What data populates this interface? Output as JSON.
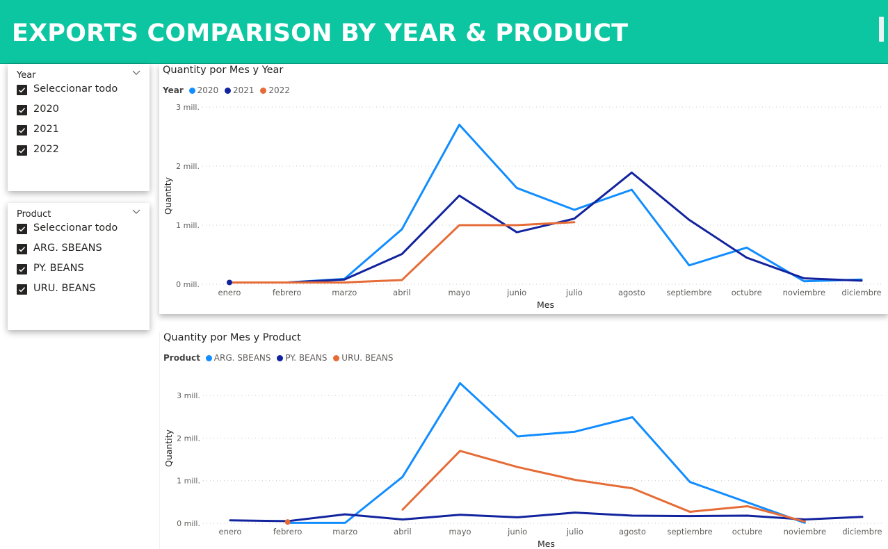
{
  "header": {
    "title": "EXPORTS COMPARISON BY YEAR & PRODUCT"
  },
  "slicers": [
    {
      "title": "Year",
      "items": [
        "Seleccionar todo",
        "2020",
        "2021",
        "2022"
      ],
      "checked": [
        true,
        true,
        true,
        true
      ]
    },
    {
      "title": "Product",
      "items": [
        "Seleccionar todo",
        "ARG. SBEANS",
        "PY. BEANS",
        "URU. BEANS"
      ],
      "checked": [
        true,
        true,
        true,
        true
      ]
    }
  ],
  "charts": [
    {
      "title": "Quantity por Mes y Year",
      "legend_title": "Year",
      "ylabel": "Quantity",
      "xlabel": "Mes",
      "yticks": [
        "0 mill.",
        "1 mill.",
        "2 mill.",
        "3 mill."
      ],
      "ylim": [
        0,
        3
      ],
      "categories": [
        "enero",
        "febrero",
        "marzo",
        "abril",
        "mayo",
        "junio",
        "julio",
        "agosto",
        "septiembre",
        "octubre",
        "noviembre",
        "diciembre"
      ],
      "series": [
        {
          "name": "2020",
          "color": "#118dff",
          "values": [
            0.03,
            0.03,
            0.09,
            0.93,
            2.7,
            1.63,
            1.26,
            1.6,
            0.32,
            0.62,
            0.05,
            0.08
          ]
        },
        {
          "name": "2021",
          "color": "#12239e",
          "values": [
            0.03,
            0.03,
            0.08,
            0.51,
            1.5,
            0.88,
            1.11,
            1.89,
            1.09,
            0.45,
            0.1,
            0.06
          ]
        },
        {
          "name": "2022",
          "color": "#e66c37",
          "values": [
            0.03,
            0.03,
            0.03,
            0.07,
            1.0,
            1.0,
            1.05,
            null,
            null,
            null,
            null,
            null
          ]
        }
      ]
    },
    {
      "title": "Quantity por Mes y Product",
      "legend_title": "Product",
      "ylabel": "Quantity",
      "xlabel": "Mes",
      "yticks": [
        "0 mill.",
        "1 mill.",
        "2 mill.",
        "3 mill."
      ],
      "ylim": [
        0,
        3.5
      ],
      "categories": [
        "enero",
        "febrero",
        "marzo",
        "abril",
        "mayo",
        "junio",
        "julio",
        "agosto",
        "septiembre",
        "octubre",
        "noviembre",
        "diciembre"
      ],
      "series": [
        {
          "name": "ARG. SBEANS",
          "color": "#118dff",
          "values": [
            null,
            0.01,
            0.01,
            1.09,
            3.29,
            2.04,
            2.15,
            2.49,
            0.97,
            0.49,
            0.01,
            null
          ]
        },
        {
          "name": "PY. BEANS",
          "color": "#12239e",
          "values": [
            0.07,
            0.05,
            0.21,
            0.09,
            0.2,
            0.14,
            0.25,
            0.18,
            0.17,
            0.18,
            0.09,
            0.15
          ]
        },
        {
          "name": "URU. BEANS",
          "color": "#e66c37",
          "values": [
            null,
            0.03,
            null,
            0.32,
            1.7,
            1.32,
            1.02,
            0.82,
            0.27,
            0.4,
            0.04,
            null
          ]
        }
      ]
    }
  ],
  "chart_data": [
    {
      "type": "line",
      "title": "Quantity por Mes y Year",
      "xlabel": "Mes",
      "ylabel": "Quantity",
      "x": [
        "enero",
        "febrero",
        "marzo",
        "abril",
        "mayo",
        "junio",
        "julio",
        "agosto",
        "septiembre",
        "octubre",
        "noviembre",
        "diciembre"
      ],
      "ylim": [
        0,
        3
      ],
      "y_unit": "mill.",
      "legend": "top-left",
      "grid": true,
      "series": [
        {
          "name": "2020",
          "values": [
            0.03,
            0.03,
            0.09,
            0.93,
            2.7,
            1.63,
            1.26,
            1.6,
            0.32,
            0.62,
            0.05,
            0.08
          ]
        },
        {
          "name": "2021",
          "values": [
            0.03,
            0.03,
            0.08,
            0.51,
            1.5,
            0.88,
            1.11,
            1.89,
            1.09,
            0.45,
            0.1,
            0.06
          ]
        },
        {
          "name": "2022",
          "values": [
            0.03,
            0.03,
            0.03,
            0.07,
            1.0,
            1.0,
            1.05,
            null,
            null,
            null,
            null,
            null
          ]
        }
      ]
    },
    {
      "type": "line",
      "title": "Quantity por Mes y Product",
      "xlabel": "Mes",
      "ylabel": "Quantity",
      "x": [
        "enero",
        "febrero",
        "marzo",
        "abril",
        "mayo",
        "junio",
        "julio",
        "agosto",
        "septiembre",
        "octubre",
        "noviembre",
        "diciembre"
      ],
      "ylim": [
        0,
        3.5
      ],
      "y_unit": "mill.",
      "legend": "top-left",
      "grid": true,
      "series": [
        {
          "name": "ARG. SBEANS",
          "values": [
            null,
            0.01,
            0.01,
            1.09,
            3.29,
            2.04,
            2.15,
            2.49,
            0.97,
            0.49,
            0.01,
            null
          ]
        },
        {
          "name": "PY. BEANS",
          "values": [
            0.07,
            0.05,
            0.21,
            0.09,
            0.2,
            0.14,
            0.25,
            0.18,
            0.17,
            0.18,
            0.09,
            0.15
          ]
        },
        {
          "name": "URU. BEANS",
          "values": [
            null,
            0.03,
            null,
            0.32,
            1.7,
            1.32,
            1.02,
            0.82,
            0.27,
            0.4,
            0.04,
            null
          ]
        }
      ]
    }
  ]
}
